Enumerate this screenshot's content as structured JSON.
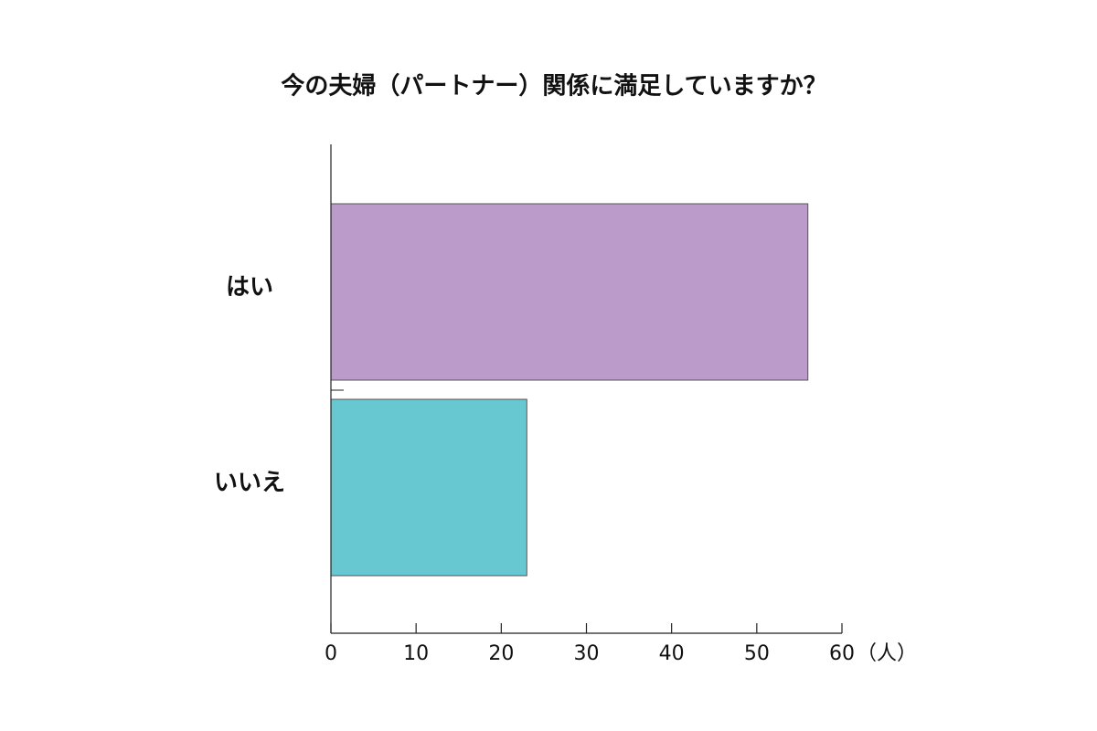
{
  "chart_data": {
    "type": "hbar",
    "title": "今の夫婦（パートナー）関係に満足していますか？",
    "categories": [
      "はい",
      "いいえ"
    ],
    "values": [
      56,
      23
    ],
    "colors": [
      "#bb9bca",
      "#67c8d1"
    ],
    "xlim": [
      0,
      60
    ],
    "xticks": [
      0,
      10,
      20,
      30,
      40,
      50,
      60
    ],
    "xlabel": "（人）",
    "grid": false
  }
}
